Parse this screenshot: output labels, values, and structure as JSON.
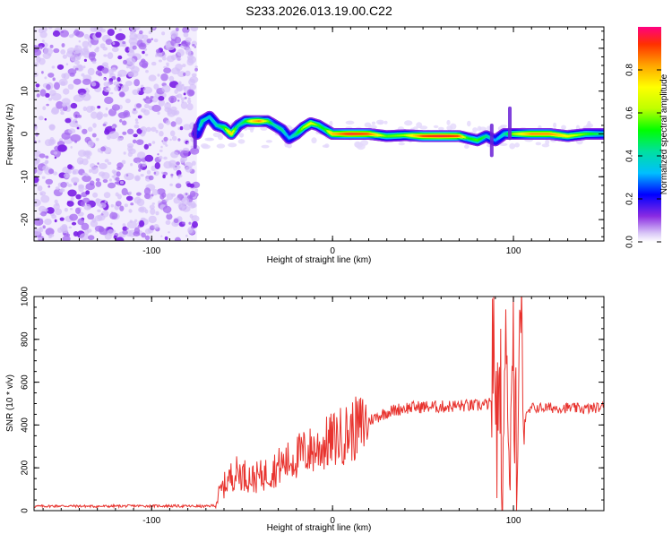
{
  "title": "S233.2026.013.19.00.C22",
  "chart_data": [
    {
      "type": "heatmap",
      "xlabel": "Height of straight line (km)",
      "ylabel": "Frequency (Hz)",
      "xlim": [
        -165,
        150
      ],
      "ylim": [
        -25,
        25
      ],
      "x_ticks": [
        -100,
        0,
        100
      ],
      "x_tick_labels": [
        "-100",
        "0",
        "100"
      ],
      "y_ticks": [
        -20,
        -10,
        0,
        10,
        20
      ],
      "y_tick_labels": [
        "-20",
        "-10",
        "0",
        "10",
        "20"
      ],
      "colorbar": {
        "label": "Normalized spectral amplitude",
        "range": [
          0,
          1
        ],
        "ticks": [
          0,
          0.2,
          0.4,
          0.6,
          0.8
        ],
        "tick_labels": [
          "0.0",
          "0.2",
          "0.4",
          "0.6",
          "0.8"
        ]
      },
      "noise_region_x": [
        -165,
        -75
      ],
      "ridge": {
        "x": [
          -75,
          -72,
          -68,
          -64,
          -60,
          -56,
          -52,
          -48,
          -44,
          -40,
          -36,
          -32,
          -28,
          -24,
          -20,
          -16,
          -12,
          -8,
          -4,
          0,
          10,
          20,
          30,
          40,
          50,
          60,
          70,
          75,
          80,
          85,
          90,
          95,
          100,
          110,
          120,
          130,
          140,
          150
        ],
        "y": [
          0,
          3,
          4,
          2,
          1.5,
          0,
          2,
          3,
          3,
          3,
          3,
          2,
          1,
          -1,
          0,
          1.5,
          2.5,
          2,
          1,
          0,
          0,
          0,
          -0.5,
          -0.3,
          -0.5,
          -0.5,
          -0.5,
          -1,
          -1.5,
          -0.5,
          -1.5,
          0,
          0,
          0,
          0,
          -0.5,
          0,
          0
        ],
        "amplitude": [
          0.2,
          0.45,
          0.35,
          0.4,
          0.5,
          0.8,
          0.4,
          0.5,
          0.75,
          0.85,
          0.6,
          0.4,
          0.45,
          0.3,
          0.45,
          0.6,
          0.7,
          0.55,
          0.5,
          0.8,
          0.95,
          0.9,
          0.55,
          0.6,
          0.9,
          0.95,
          0.9,
          0.5,
          0.55,
          0.45,
          0.3,
          0.4,
          0.6,
          0.85,
          0.85,
          0.7,
          0.55,
          0.45
        ]
      }
    },
    {
      "type": "line",
      "xlabel": "Height of straight line (km)",
      "ylabel": "SNR (10 * v/v)",
      "xlim": [
        -165,
        150
      ],
      "ylim": [
        0,
        1000
      ],
      "x_ticks": [
        -100,
        0,
        100
      ],
      "x_tick_labels": [
        "-100",
        "0",
        "100"
      ],
      "y_ticks": [
        0,
        200,
        400,
        600,
        800,
        1000
      ],
      "y_tick_labels": [
        "0",
        "200",
        "400",
        "600",
        "800",
        "1000"
      ],
      "color": "#e8332e",
      "series": [
        {
          "name": "SNR",
          "x": [
            -165,
            -150,
            -130,
            -110,
            -90,
            -70,
            -65,
            -62,
            -58,
            -55,
            -52,
            -48,
            -44,
            -40,
            -36,
            -32,
            -28,
            -24,
            -20,
            -16,
            -12,
            -8,
            -4,
            0,
            5,
            10,
            15,
            20,
            25,
            30,
            40,
            50,
            60,
            70,
            80,
            88,
            92,
            94,
            96,
            98,
            100,
            102,
            104,
            106,
            110,
            120,
            130,
            140,
            150
          ],
          "y": [
            20,
            22,
            20,
            22,
            22,
            20,
            25,
            90,
            140,
            170,
            180,
            165,
            150,
            160,
            175,
            195,
            215,
            230,
            250,
            270,
            280,
            290,
            310,
            330,
            350,
            370,
            390,
            420,
            440,
            460,
            480,
            485,
            485,
            490,
            490,
            500,
            560,
            150,
            850,
            200,
            900,
            300,
            1000,
            420,
            480,
            480,
            480,
            475,
            485
          ]
        }
      ]
    }
  ]
}
